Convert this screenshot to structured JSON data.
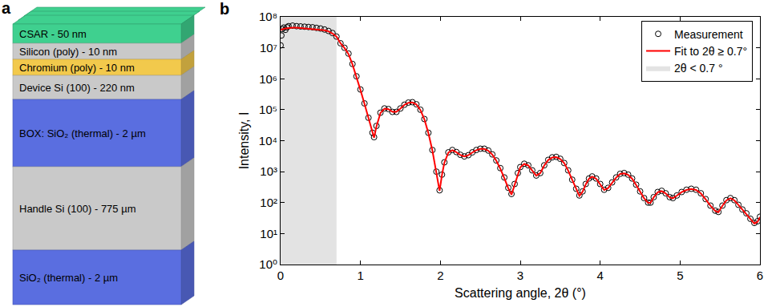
{
  "diagram": {
    "label": "a",
    "layers": [
      {
        "text": "CSAR - 50 nm",
        "color": "#3fd08f"
      },
      {
        "text": "Silicon (poly) - 10 nm",
        "color": "#c9c9c9"
      },
      {
        "text": "Chromium (poly) - 10 nm",
        "color": "#f2c94c"
      },
      {
        "text": "Device Si (100) - 220 nm",
        "color": "#c9c9c9"
      },
      {
        "text": "BOX: SiO₂ (thermal) - 2 µm",
        "color": "#5a6ee0"
      },
      {
        "text": "Handle Si (100) - 775 µm",
        "color": "#c9c9c9"
      },
      {
        "text": "SiO₂ (thermal) - 2 µm",
        "color": "#5a6ee0"
      }
    ]
  },
  "chart_data": {
    "type": "scatter",
    "label": "b",
    "xlabel": "Scattering angle, 2θ (°)",
    "ylabel": "Intensity, I",
    "log": "y",
    "grid": false,
    "legend": "top right",
    "xlim": [
      0,
      6
    ],
    "xticks": [
      0,
      1,
      2,
      3,
      4,
      5,
      6
    ],
    "ylim": [
      1,
      100000000
    ],
    "yticks": [
      {
        "value": 1,
        "label": "10⁰"
      },
      {
        "value": 10,
        "label": "10¹"
      },
      {
        "value": 100,
        "label": "10²"
      },
      {
        "value": 1000,
        "label": "10³"
      },
      {
        "value": 10000,
        "label": "10⁴"
      },
      {
        "value": 100000,
        "label": "10⁵"
      },
      {
        "value": 1000000,
        "label": "10⁶"
      },
      {
        "value": 10000000,
        "label": "10⁷"
      },
      {
        "value": 100000000,
        "label": "10⁸"
      }
    ],
    "shaded": {
      "name": "2θ < 0.7 °",
      "color": "#e3e3e3",
      "x_range": [
        0,
        0.7
      ]
    },
    "series": [
      {
        "name": "Measurement",
        "type": "scatter",
        "marker": "circle-open",
        "color": "#000000",
        "x": [
          0,
          0.01,
          0.02,
          0.04,
          0.06,
          0.08,
          0.1,
          0.15,
          0.2,
          0.25,
          0.3,
          0.35,
          0.4,
          0.45,
          0.5,
          0.55,
          0.6,
          0.65,
          0.7,
          0.75,
          0.8,
          0.85,
          0.9,
          0.95,
          1,
          1.05,
          1.1,
          1.15,
          1.17,
          1.2,
          1.25,
          1.3,
          1.35,
          1.4,
          1.45,
          1.5,
          1.55,
          1.6,
          1.65,
          1.7,
          1.75,
          1.8,
          1.85,
          1.9,
          1.95,
          1.99,
          2.02,
          2.05,
          2.1,
          2.15,
          2.2,
          2.25,
          2.3,
          2.35,
          2.4,
          2.45,
          2.5,
          2.55,
          2.6,
          2.65,
          2.7,
          2.75,
          2.8,
          2.85,
          2.89,
          2.93,
          2.97,
          3,
          3.05,
          3.1,
          3.15,
          3.2,
          3.25,
          3.3,
          3.35,
          3.4,
          3.45,
          3.5,
          3.55,
          3.6,
          3.65,
          3.7,
          3.74,
          3.78,
          3.82,
          3.86,
          3.9,
          3.95,
          4,
          4.05,
          4.1,
          4.15,
          4.2,
          4.25,
          4.3,
          4.35,
          4.4,
          4.45,
          4.5,
          4.55,
          4.6,
          4.63,
          4.67,
          4.72,
          4.77,
          4.82,
          4.87,
          4.91,
          4.96,
          5.02,
          5.08,
          5.14,
          5.2,
          5.26,
          5.32,
          5.38,
          5.44,
          5.48,
          5.53,
          5.58,
          5.63,
          5.68,
          5.73,
          5.78,
          5.83,
          5.88,
          5.93,
          5.97,
          6
        ],
        "values": [
          12000000,
          25000000,
          40000000,
          45000000,
          38000000,
          46000000,
          50000000,
          52000000,
          50000000,
          49000000,
          48000000,
          47000000,
          46000000,
          44000000,
          42000000,
          39000000,
          35000000,
          30000000,
          23000000,
          14000000,
          10000000,
          6500000,
          3000000,
          1200000,
          450000,
          160000,
          55000,
          18000,
          13000,
          30000,
          80000,
          110000,
          105000,
          85000,
          85000,
          110000,
          145000,
          170000,
          175000,
          150000,
          100000,
          50000,
          18000,
          5000,
          1000,
          250,
          800,
          2000,
          4200,
          5000,
          4300,
          3500,
          3100,
          3400,
          4200,
          5000,
          5500,
          5500,
          4800,
          3600,
          2300,
          1300,
          650,
          300,
          190,
          400,
          900,
          1400,
          1800,
          1600,
          1100,
          750,
          900,
          1600,
          2400,
          2900,
          3000,
          2600,
          1900,
          1100,
          550,
          280,
          170,
          230,
          400,
          600,
          700,
          600,
          400,
          260,
          300,
          450,
          650,
          850,
          900,
          800,
          600,
          380,
          230,
          140,
          100,
          100,
          150,
          220,
          240,
          200,
          150,
          140,
          170,
          220,
          260,
          280,
          260,
          200,
          130,
          80,
          55,
          50,
          80,
          120,
          140,
          120,
          85,
          60,
          45,
          30,
          22,
          25,
          35
        ]
      },
      {
        "name": "Fit to 2θ ≥ 0.7°",
        "type": "line",
        "color": "#ff0000",
        "x": [
          0,
          0.01,
          0.02,
          0.04,
          0.06,
          0.08,
          0.1,
          0.15,
          0.2,
          0.25,
          0.3,
          0.35,
          0.4,
          0.45,
          0.5,
          0.55,
          0.6,
          0.65,
          0.7,
          0.75,
          0.8,
          0.85,
          0.9,
          0.95,
          1,
          1.05,
          1.1,
          1.15,
          1.17,
          1.2,
          1.25,
          1.3,
          1.35,
          1.4,
          1.45,
          1.5,
          1.55,
          1.6,
          1.65,
          1.7,
          1.75,
          1.8,
          1.85,
          1.9,
          1.95,
          1.99,
          2.02,
          2.05,
          2.1,
          2.15,
          2.2,
          2.25,
          2.3,
          2.35,
          2.4,
          2.45,
          2.5,
          2.55,
          2.6,
          2.65,
          2.7,
          2.75,
          2.8,
          2.85,
          2.89,
          2.93,
          2.97,
          3,
          3.05,
          3.1,
          3.15,
          3.2,
          3.25,
          3.3,
          3.35,
          3.4,
          3.45,
          3.5,
          3.55,
          3.6,
          3.65,
          3.7,
          3.74,
          3.78,
          3.82,
          3.86,
          3.9,
          3.95,
          4,
          4.05,
          4.1,
          4.15,
          4.2,
          4.25,
          4.3,
          4.35,
          4.4,
          4.45,
          4.5,
          4.55,
          4.6,
          4.63,
          4.67,
          4.72,
          4.77,
          4.82,
          4.87,
          4.91,
          4.96,
          5.02,
          5.08,
          5.14,
          5.2,
          5.26,
          5.32,
          5.38,
          5.44,
          5.48,
          5.53,
          5.58,
          5.63,
          5.68,
          5.73,
          5.78,
          5.83,
          5.88,
          5.93,
          5.97,
          6
        ],
        "values": [
          38000000,
          39000000,
          40000000,
          41000000,
          42000000,
          43000000,
          44000000,
          45000000,
          45000000,
          44000000,
          43000000,
          42000000,
          41000000,
          40000000,
          39000000,
          37000000,
          34000000,
          29000000,
          23000000,
          14000000,
          9800000,
          6300000,
          2900000,
          1150000,
          430000,
          155000,
          53000,
          17000,
          12500,
          29000,
          78000,
          108000,
          104000,
          86000,
          86000,
          108000,
          143000,
          168000,
          172000,
          148000,
          98000,
          49000,
          17500,
          4800,
          950,
          240,
          780,
          1950,
          4100,
          4900,
          4250,
          3450,
          3100,
          3400,
          4150,
          4950,
          5400,
          5400,
          4750,
          3550,
          2250,
          1250,
          620,
          290,
          180,
          390,
          880,
          1380,
          1780,
          1580,
          1080,
          740,
          890,
          1580,
          2380,
          2850,
          2950,
          2570,
          1870,
          1080,
          540,
          270,
          165,
          225,
          390,
          590,
          690,
          590,
          395,
          255,
          295,
          440,
          640,
          840,
          880,
          790,
          590,
          370,
          225,
          138,
          98,
          99,
          148,
          215,
          235,
          198,
          148,
          138,
          168,
          218,
          255,
          275,
          255,
          198,
          128,
          79,
          54,
          49,
          79,
          118,
          138,
          118,
          84,
          59,
          44,
          29,
          21,
          24,
          34
        ]
      }
    ]
  }
}
